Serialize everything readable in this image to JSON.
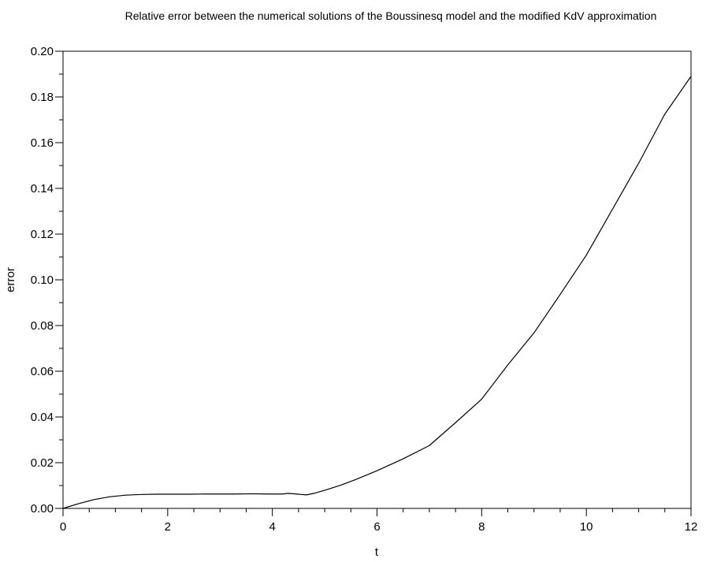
{
  "chart_data": {
    "type": "line",
    "title": "Relative error between the numerical solutions of the Boussinesq model and the modified KdV approximation",
    "xlabel": "t",
    "ylabel": "error",
    "xlim": [
      0,
      12
    ],
    "ylim": [
      0,
      0.2
    ],
    "x_ticks": [
      0,
      2,
      4,
      6,
      8,
      10,
      12
    ],
    "x_tick_labels": [
      "0",
      "2",
      "4",
      "6",
      "8",
      "10",
      "12"
    ],
    "x_minor_ticks": [
      0.5,
      1,
      1.5,
      2.5,
      3,
      3.5,
      4.5,
      5,
      5.5,
      6.5,
      7,
      7.5,
      8.5,
      9,
      9.5,
      10.5,
      11,
      11.5
    ],
    "y_ticks": [
      0,
      0.02,
      0.04,
      0.06,
      0.08,
      0.1,
      0.12,
      0.14,
      0.16,
      0.18,
      0.2
    ],
    "y_tick_labels": [
      "0.00",
      "0.02",
      "0.04",
      "0.06",
      "0.08",
      "0.10",
      "0.12",
      "0.14",
      "0.16",
      "0.18",
      "0.20"
    ],
    "y_minor_ticks": [
      0.01,
      0.03,
      0.05,
      0.07,
      0.09,
      0.11,
      0.13,
      0.15,
      0.17,
      0.19
    ],
    "grid": false,
    "line_color": "#000000",
    "series": [
      {
        "x": [
          0,
          0.3,
          0.6,
          0.9,
          1.2,
          1.5,
          1.8,
          2.1,
          2.4,
          2.7,
          3.0,
          3.3,
          3.6,
          3.9,
          4.2,
          4.3,
          4.5,
          4.65,
          4.8,
          5.0,
          5.3,
          5.6,
          6.0,
          6.5,
          7.0,
          7.5,
          8.0,
          8.5,
          9.0,
          9.5,
          10.0,
          10.5,
          11.0,
          11.5,
          12.0
        ],
        "y": [
          0.0,
          0.0021,
          0.0039,
          0.0051,
          0.0058,
          0.0061,
          0.0062,
          0.0062,
          0.0062,
          0.0063,
          0.0063,
          0.0063,
          0.0064,
          0.0063,
          0.0063,
          0.0066,
          0.0062,
          0.0059,
          0.0066,
          0.0079,
          0.0101,
          0.0127,
          0.0165,
          0.0217,
          0.0275,
          0.0375,
          0.0478,
          0.0628,
          0.0768,
          0.0936,
          0.1108,
          0.1309,
          0.151,
          0.1725,
          0.189
        ]
      }
    ]
  }
}
